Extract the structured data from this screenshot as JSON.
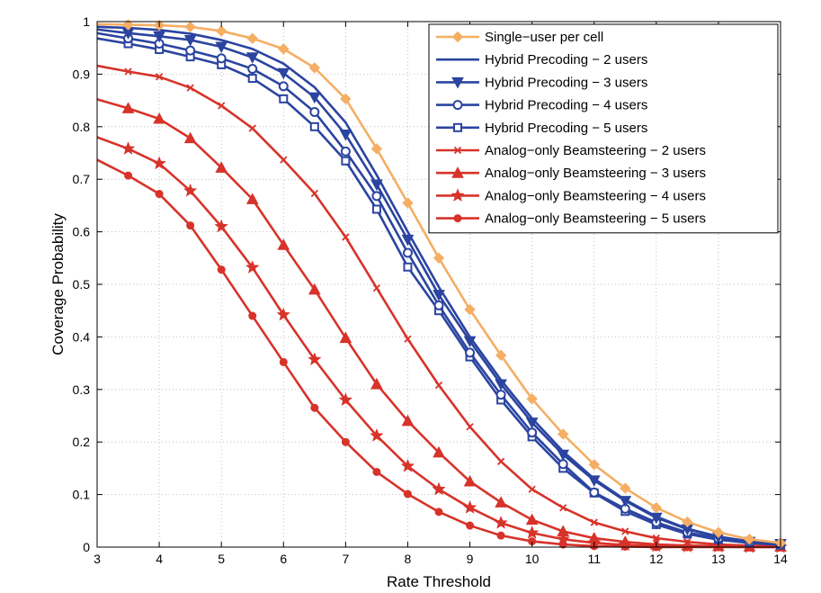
{
  "chart_data": {
    "type": "line",
    "title": "",
    "xlabel": "Rate Threshold",
    "ylabel": "Coverage Probability",
    "xlim": [
      3,
      14
    ],
    "ylim": [
      0,
      1
    ],
    "xticks": [
      3,
      4,
      5,
      6,
      7,
      8,
      9,
      10,
      11,
      12,
      13,
      14
    ],
    "yticks": [
      0,
      0.1,
      0.2,
      0.3,
      0.4,
      0.5,
      0.6,
      0.7,
      0.8,
      0.9,
      1
    ],
    "ytick_labels": [
      "0",
      "0.1",
      "0.2",
      "0.3",
      "0.4",
      "0.5",
      "0.6",
      "0.7",
      "0.8",
      "0.9",
      "1"
    ],
    "grid": true,
    "legend_position": "top-right",
    "x": [
      3,
      3.5,
      4,
      4.5,
      5,
      5.5,
      6,
      6.5,
      7,
      7.5,
      8,
      8.5,
      9,
      9.5,
      10,
      10.5,
      11,
      11.5,
      12,
      12.5,
      13,
      13.5,
      14
    ],
    "series": [
      {
        "name": "Single−user per cell",
        "color": "#f5ae63",
        "marker": "diamond",
        "values": [
          0.995,
          0.994,
          0.993,
          0.99,
          0.982,
          0.968,
          0.948,
          0.912,
          0.853,
          0.758,
          0.655,
          0.55,
          0.452,
          0.365,
          0.282,
          0.215,
          0.157,
          0.112,
          0.075,
          0.048,
          0.028,
          0.015,
          0.008
        ]
      },
      {
        "name": "Hybrid Precoding − 2 users",
        "color": "#2b44a0",
        "marker": "none",
        "values": [
          0.99,
          0.988,
          0.984,
          0.977,
          0.965,
          0.948,
          0.92,
          0.875,
          0.808,
          0.708,
          0.6,
          0.495,
          0.4,
          0.318,
          0.245,
          0.182,
          0.13,
          0.09,
          0.058,
          0.035,
          0.02,
          0.011,
          0.006
        ]
      },
      {
        "name": "Hybrid Precoding − 3 users",
        "color": "#2b44a0",
        "marker": "triangle-down",
        "values": [
          0.985,
          0.978,
          0.972,
          0.965,
          0.952,
          0.932,
          0.902,
          0.856,
          0.785,
          0.69,
          0.585,
          0.48,
          0.392,
          0.31,
          0.237,
          0.176,
          0.127,
          0.088,
          0.056,
          0.034,
          0.019,
          0.01,
          0.006
        ]
      },
      {
        "name": "Hybrid Precoding − 4 users",
        "color": "#2b44a0",
        "marker": "circle-open",
        "values": [
          0.978,
          0.968,
          0.958,
          0.945,
          0.93,
          0.91,
          0.877,
          0.828,
          0.753,
          0.668,
          0.56,
          0.46,
          0.37,
          0.29,
          0.218,
          0.158,
          0.104,
          0.073,
          0.047,
          0.028,
          0.016,
          0.009,
          0.005
        ]
      },
      {
        "name": "Hybrid Precoding − 5 users",
        "color": "#2b44a0",
        "marker": "square-open",
        "values": [
          0.968,
          0.958,
          0.947,
          0.933,
          0.918,
          0.892,
          0.853,
          0.8,
          0.735,
          0.643,
          0.533,
          0.45,
          0.362,
          0.28,
          0.21,
          0.15,
          0.103,
          0.068,
          0.043,
          0.025,
          0.014,
          0.008,
          0.004
        ]
      },
      {
        "name": "Analog−only Beamsteering − 2 users",
        "color": "#d7332a",
        "marker": "x",
        "values": [
          0.916,
          0.905,
          0.895,
          0.874,
          0.84,
          0.797,
          0.737,
          0.673,
          0.59,
          0.493,
          0.396,
          0.308,
          0.229,
          0.163,
          0.11,
          0.075,
          0.047,
          0.03,
          0.017,
          0.01,
          0.005,
          0.003,
          0.002
        ]
      },
      {
        "name": "Analog−only Beamsteering − 3 users",
        "color": "#d7332a",
        "marker": "triangle-up",
        "values": [
          0.852,
          0.835,
          0.815,
          0.778,
          0.722,
          0.662,
          0.575,
          0.49,
          0.398,
          0.31,
          0.24,
          0.18,
          0.125,
          0.085,
          0.052,
          0.03,
          0.017,
          0.01,
          0.005,
          0.003,
          0.002,
          0.001,
          0.001
        ]
      },
      {
        "name": "Analog−only Beamsteering − 4 users",
        "color": "#d7332a",
        "marker": "star",
        "values": [
          0.78,
          0.758,
          0.73,
          0.678,
          0.61,
          0.532,
          0.442,
          0.357,
          0.28,
          0.212,
          0.154,
          0.11,
          0.075,
          0.046,
          0.027,
          0.015,
          0.008,
          0.004,
          0.002,
          0.001,
          0.001,
          0.0,
          0.0
        ]
      },
      {
        "name": "Analog−only Beamsteering − 5 users",
        "color": "#d7332a",
        "marker": "circle-filled",
        "values": [
          0.737,
          0.707,
          0.672,
          0.612,
          0.528,
          0.44,
          0.352,
          0.265,
          0.2,
          0.143,
          0.101,
          0.067,
          0.041,
          0.022,
          0.011,
          0.005,
          0.002,
          0.001,
          0.0,
          0.0,
          0.0,
          0.0,
          0.0
        ]
      }
    ]
  }
}
